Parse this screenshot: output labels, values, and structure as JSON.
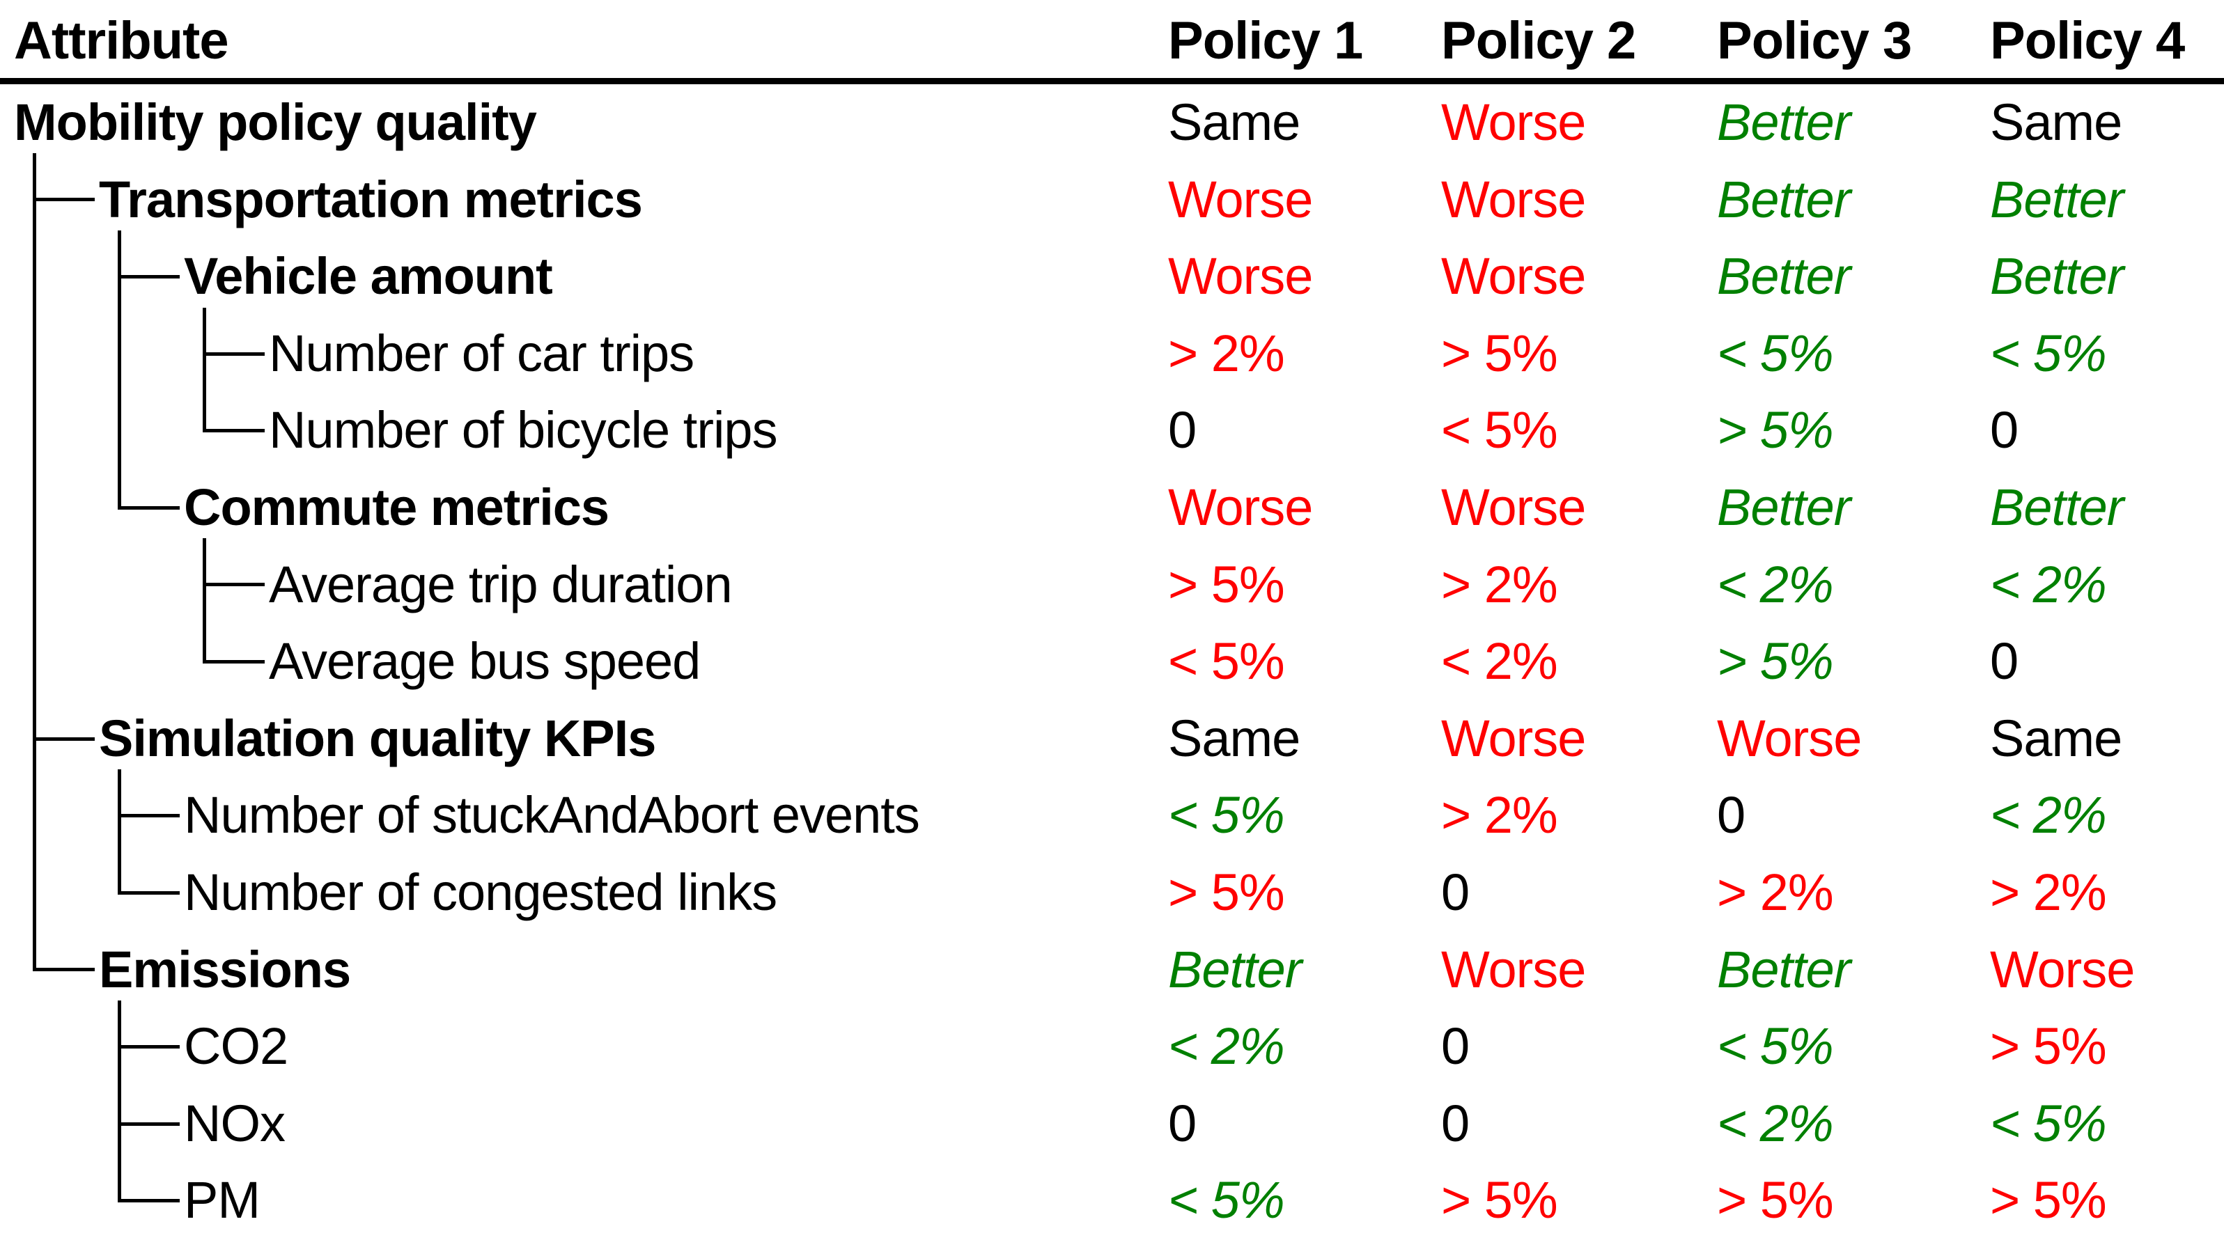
{
  "table": {
    "header": {
      "attribute": "Attribute",
      "policies": [
        "Policy 1",
        "Policy 2",
        "Policy 3",
        "Policy 4"
      ]
    },
    "colors": {
      "bad": "#ff0000",
      "good": "#008000",
      "neutral": "#000000"
    },
    "rows": [
      {
        "label": "Mobility policy quality",
        "level": 0,
        "bold": true,
        "values": [
          {
            "text": "Same",
            "sentiment": "neutral"
          },
          {
            "text": "Worse",
            "sentiment": "bad"
          },
          {
            "text": "Better",
            "sentiment": "good"
          },
          {
            "text": "Same",
            "sentiment": "neutral"
          }
        ]
      },
      {
        "label": "Transportation metrics",
        "level": 1,
        "bold": true,
        "values": [
          {
            "text": "Worse",
            "sentiment": "bad"
          },
          {
            "text": "Worse",
            "sentiment": "bad"
          },
          {
            "text": "Better",
            "sentiment": "good"
          },
          {
            "text": "Better",
            "sentiment": "good"
          }
        ]
      },
      {
        "label": "Vehicle amount",
        "level": 2,
        "bold": true,
        "values": [
          {
            "text": "Worse",
            "sentiment": "bad"
          },
          {
            "text": "Worse",
            "sentiment": "bad"
          },
          {
            "text": "Better",
            "sentiment": "good"
          },
          {
            "text": "Better",
            "sentiment": "good"
          }
        ]
      },
      {
        "label": "Number of car trips",
        "level": 3,
        "bold": false,
        "values": [
          {
            "text": "> 2%",
            "sentiment": "bad"
          },
          {
            "text": "> 5%",
            "sentiment": "bad"
          },
          {
            "text": "< 5%",
            "sentiment": "good"
          },
          {
            "text": "< 5%",
            "sentiment": "good"
          }
        ]
      },
      {
        "label": "Number of bicycle trips",
        "level": 3,
        "bold": false,
        "values": [
          {
            "text": "0",
            "sentiment": "neutral"
          },
          {
            "text": "< 5%",
            "sentiment": "bad"
          },
          {
            "text": "> 5%",
            "sentiment": "good"
          },
          {
            "text": "0",
            "sentiment": "neutral"
          }
        ]
      },
      {
        "label": "Commute metrics",
        "level": 2,
        "bold": true,
        "values": [
          {
            "text": "Worse",
            "sentiment": "bad"
          },
          {
            "text": "Worse",
            "sentiment": "bad"
          },
          {
            "text": "Better",
            "sentiment": "good"
          },
          {
            "text": "Better",
            "sentiment": "good"
          }
        ]
      },
      {
        "label": "Average trip duration",
        "level": 3,
        "bold": false,
        "values": [
          {
            "text": "> 5%",
            "sentiment": "bad"
          },
          {
            "text": "> 2%",
            "sentiment": "bad"
          },
          {
            "text": "< 2%",
            "sentiment": "good"
          },
          {
            "text": "< 2%",
            "sentiment": "good"
          }
        ]
      },
      {
        "label": "Average bus speed",
        "level": 3,
        "bold": false,
        "values": [
          {
            "text": "< 5%",
            "sentiment": "bad"
          },
          {
            "text": "< 2%",
            "sentiment": "bad"
          },
          {
            "text": "> 5%",
            "sentiment": "good"
          },
          {
            "text": "0",
            "sentiment": "neutral"
          }
        ]
      },
      {
        "label": "Simulation quality KPIs",
        "level": 1,
        "bold": true,
        "values": [
          {
            "text": "Same",
            "sentiment": "neutral"
          },
          {
            "text": "Worse",
            "sentiment": "bad"
          },
          {
            "text": "Worse",
            "sentiment": "bad"
          },
          {
            "text": "Same",
            "sentiment": "neutral"
          }
        ]
      },
      {
        "label": "Number of stuckAndAbort events",
        "level": 2,
        "bold": false,
        "values": [
          {
            "text": "< 5%",
            "sentiment": "good"
          },
          {
            "text": "> 2%",
            "sentiment": "bad"
          },
          {
            "text": "0",
            "sentiment": "neutral"
          },
          {
            "text": "< 2%",
            "sentiment": "good"
          }
        ]
      },
      {
        "label": "Number of congested links",
        "level": 2,
        "bold": false,
        "values": [
          {
            "text": "> 5%",
            "sentiment": "bad"
          },
          {
            "text": "0",
            "sentiment": "neutral"
          },
          {
            "text": "> 2%",
            "sentiment": "bad"
          },
          {
            "text": "> 2%",
            "sentiment": "bad"
          }
        ]
      },
      {
        "label": "Emissions",
        "level": 1,
        "bold": true,
        "values": [
          {
            "text": "Better",
            "sentiment": "good"
          },
          {
            "text": "Worse",
            "sentiment": "bad"
          },
          {
            "text": "Better",
            "sentiment": "good"
          },
          {
            "text": "Worse",
            "sentiment": "bad"
          }
        ]
      },
      {
        "label": "CO2",
        "level": 2,
        "bold": false,
        "values": [
          {
            "text": "< 2%",
            "sentiment": "good"
          },
          {
            "text": "0",
            "sentiment": "neutral"
          },
          {
            "text": "< 5%",
            "sentiment": "good"
          },
          {
            "text": "> 5%",
            "sentiment": "bad"
          }
        ]
      },
      {
        "label": "NOx",
        "level": 2,
        "bold": false,
        "values": [
          {
            "text": "0",
            "sentiment": "neutral"
          },
          {
            "text": "0",
            "sentiment": "neutral"
          },
          {
            "text": "< 2%",
            "sentiment": "good"
          },
          {
            "text": "< 5%",
            "sentiment": "good"
          }
        ]
      },
      {
        "label": "PM",
        "level": 2,
        "bold": false,
        "values": [
          {
            "text": "< 5%",
            "sentiment": "good"
          },
          {
            "text": "> 5%",
            "sentiment": "bad"
          },
          {
            "text": "> 5%",
            "sentiment": "bad"
          },
          {
            "text": "> 5%",
            "sentiment": "bad"
          }
        ]
      }
    ]
  }
}
